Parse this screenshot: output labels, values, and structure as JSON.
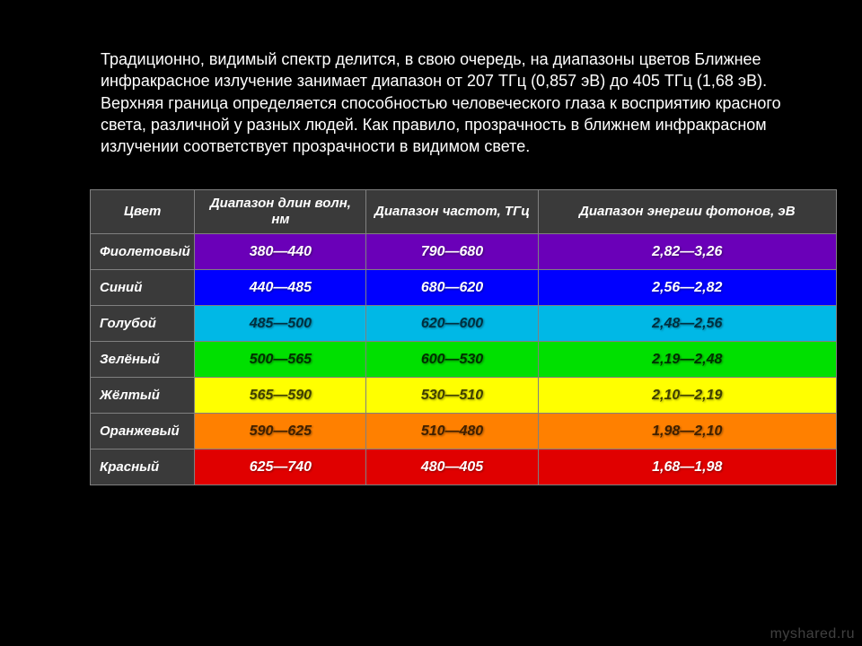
{
  "intro": {
    "text": "Традиционно, видимый спектр делится, в свою очередь, на диапазоны цветов\n Ближнее инфракрасное излучение занимает диапазон от 207 ТГц (0,857 эВ) до 405 ТГц (1,68 эВ). Верхняя граница определяется способностью человеческого глаза к восприятию красного света, различной у разных людей. Как правило, прозрачность в ближнем инфракрасном излучении соответствует прозрачности в видимом свете.",
    "font_size": 18,
    "color": "#ffffff"
  },
  "table": {
    "type": "table",
    "background_color": "#000000",
    "border_color": "#808080",
    "header_bg": "#3a3a3a",
    "header_text_color": "#ffffff",
    "column_widths": [
      "14%",
      "23%",
      "23%",
      "40%"
    ],
    "columns": [
      "Цвет",
      "Диапазон длин волн, нм",
      "Диапазон частот, ТГц",
      "Диапазон энергии фотонов, эВ"
    ],
    "rows": [
      {
        "name": "Фиолетовый",
        "wavelength": "380—440",
        "frequency": "790—680",
        "energy": "2,82—3,26",
        "bg": "#6a00b8",
        "fg": "#ffffff"
      },
      {
        "name": "Синий",
        "wavelength": "440—485",
        "frequency": "680—620",
        "energy": "2,56—2,82",
        "bg": "#0000ff",
        "fg": "#ffffff"
      },
      {
        "name": "Голубой",
        "wavelength": "485—500",
        "frequency": "620—600",
        "energy": "2,48—2,56",
        "bg": "#00b8e6",
        "fg": "#003040"
      },
      {
        "name": "Зелёный",
        "wavelength": "500—565",
        "frequency": "600—530",
        "energy": "2,19—2,48",
        "bg": "#00e000",
        "fg": "#003000"
      },
      {
        "name": "Жёлтый",
        "wavelength": "565—590",
        "frequency": "530—510",
        "energy": "2,10—2,19",
        "bg": "#ffff00",
        "fg": "#404000"
      },
      {
        "name": "Оранжевый",
        "wavelength": "590—625",
        "frequency": "510—480",
        "energy": "1,98—2,10",
        "bg": "#ff8000",
        "fg": "#402000"
      },
      {
        "name": "Красный",
        "wavelength": "625—740",
        "frequency": "480—405",
        "energy": "1,68—1,98",
        "bg": "#e00000",
        "fg": "#ffffff"
      }
    ]
  },
  "watermark": "myshared.ru"
}
